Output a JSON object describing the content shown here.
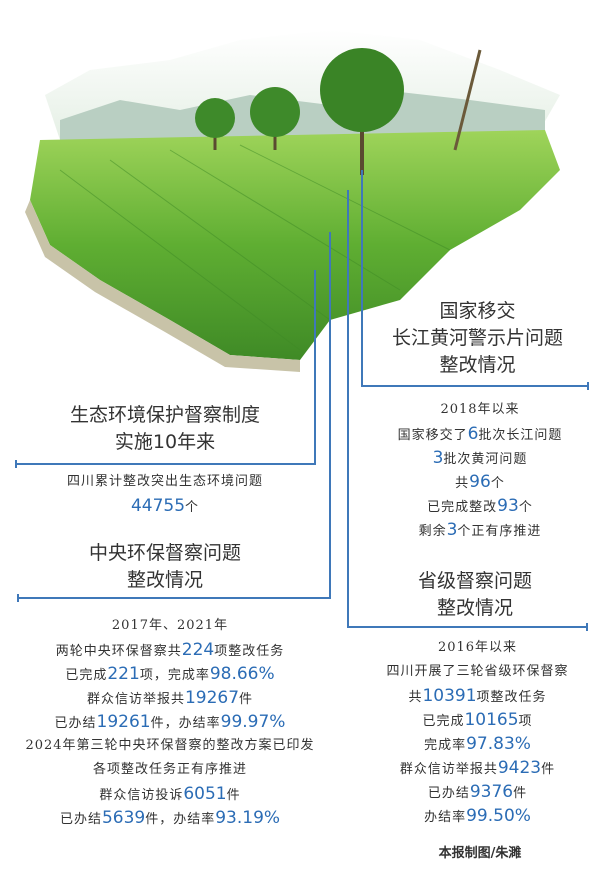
{
  "colors": {
    "highlight": "#2b6cb5",
    "rule": "#3f78b9",
    "field": "#6bbf3a"
  },
  "illustration": {
    "description_icon": "farmland-map-with-trees-icon"
  },
  "national": {
    "title": [
      "国家移交",
      "长江黄河警示片问题",
      "整改情况"
    ],
    "lines": [
      [
        {
          "t": "2018年以来"
        }
      ],
      [
        {
          "t": "国家移交了"
        },
        {
          "t": "6",
          "hl": true
        },
        {
          "t": "批次长江问题"
        }
      ],
      [
        {
          "t": "3",
          "hl": true
        },
        {
          "t": "批次黄河问题"
        }
      ],
      [
        {
          "t": "共"
        },
        {
          "t": "96",
          "hl": true
        },
        {
          "t": "个"
        }
      ],
      [
        {
          "t": "已完成整改"
        },
        {
          "t": "93",
          "hl": true
        },
        {
          "t": "个"
        }
      ],
      [
        {
          "t": "剩余"
        },
        {
          "t": "3",
          "hl": true
        },
        {
          "t": "个正有序推进"
        }
      ]
    ]
  },
  "system": {
    "title": [
      "生态环境保护督察制度",
      "实施10年来"
    ],
    "lines": [
      [
        {
          "t": "四川累计整改突出生态环境问题"
        }
      ],
      [
        {
          "t": "44755",
          "hl": true
        },
        {
          "t": "个"
        }
      ]
    ]
  },
  "central": {
    "title": [
      "中央环保督察问题",
      "整改情况"
    ],
    "lines": [
      [
        {
          "t": "2017年、2021年"
        }
      ],
      [
        {
          "t": "两轮中央环保督察共"
        },
        {
          "t": "224",
          "hl": true
        },
        {
          "t": "项整改任务"
        }
      ],
      [
        {
          "t": "已完成"
        },
        {
          "t": "221",
          "hl": true
        },
        {
          "t": "项，完成率"
        },
        {
          "t": "98.66%",
          "hl": true
        }
      ],
      [
        {
          "t": "群众信访举报共"
        },
        {
          "t": "19267",
          "hl": true
        },
        {
          "t": "件"
        }
      ],
      [
        {
          "t": "已办结"
        },
        {
          "t": "19261",
          "hl": true
        },
        {
          "t": "件，办结率"
        },
        {
          "t": "99.97%",
          "hl": true
        }
      ],
      [
        {
          "t": "2024年第三轮中央环保督察的整改方案已印发"
        }
      ],
      [
        {
          "t": "各项整改任务正有序推进"
        }
      ],
      [
        {
          "t": "群众信访投诉"
        },
        {
          "t": "6051",
          "hl": true
        },
        {
          "t": "件"
        }
      ],
      [
        {
          "t": "已办结"
        },
        {
          "t": "5639",
          "hl": true
        },
        {
          "t": "件，办结率"
        },
        {
          "t": "93.19%",
          "hl": true
        }
      ]
    ]
  },
  "provincial": {
    "title": [
      "省级督察问题",
      "整改情况"
    ],
    "lines": [
      [
        {
          "t": "2016年以来"
        }
      ],
      [
        {
          "t": "四川开展了三轮省级环保督察"
        }
      ],
      [
        {
          "t": "共"
        },
        {
          "t": "10391",
          "hl": true
        },
        {
          "t": "项整改任务"
        }
      ],
      [
        {
          "t": "已完成"
        },
        {
          "t": "10165",
          "hl": true
        },
        {
          "t": "项"
        }
      ],
      [
        {
          "t": "完成率"
        },
        {
          "t": "97.83%",
          "hl": true
        }
      ],
      [
        {
          "t": "群众信访举报共"
        },
        {
          "t": "9423",
          "hl": true
        },
        {
          "t": "件"
        }
      ],
      [
        {
          "t": "已办结"
        },
        {
          "t": "9376",
          "hl": true
        },
        {
          "t": "件"
        }
      ],
      [
        {
          "t": "办结率"
        },
        {
          "t": "99.50%",
          "hl": true
        }
      ]
    ]
  },
  "credit": "本报制图/朱濉"
}
